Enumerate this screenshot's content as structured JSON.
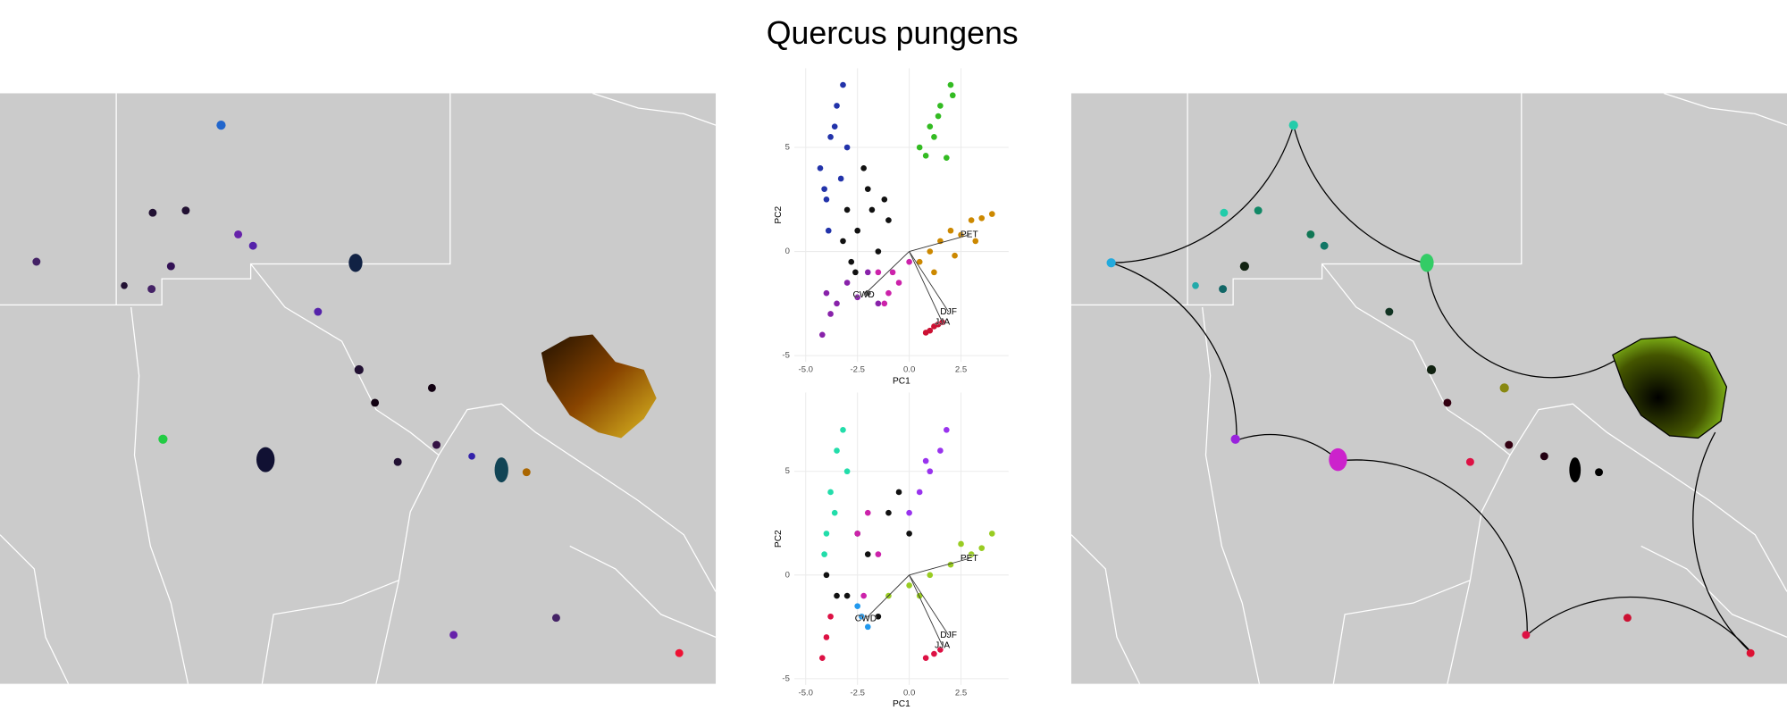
{
  "title": "Quercus pungens",
  "chart_data": [
    {
      "type": "scatter",
      "x_label": "PC1",
      "y_label": "PC2",
      "xlim": [
        -5.55,
        4.8
      ],
      "ylim": [
        -5.3,
        8.8
      ],
      "xticks": [
        {
          "value": -5,
          "label": "-5.0"
        },
        {
          "value": -2.5,
          "label": "-2.5"
        },
        {
          "value": 0,
          "label": "0.0"
        },
        2.5
      ],
      "yticks": [
        -5,
        0,
        5
      ],
      "grid": true,
      "series": [
        {
          "color": "#2233aa",
          "x": [
            -4.3,
            -4.0,
            -3.8,
            -3.5,
            -3.2,
            -3.9,
            -4.1,
            -3.6,
            -3.3,
            -3.0
          ],
          "values": [
            4,
            2.5,
            5.5,
            7,
            8,
            1,
            3,
            6,
            3.5,
            5
          ]
        },
        {
          "color": "#111111",
          "x": [
            -3,
            -2.5,
            -2,
            -1.5,
            -1,
            -2.8,
            -2.2,
            -1.8,
            -3.2,
            -2.6,
            -1.2,
            -2
          ],
          "values": [
            2,
            1,
            3,
            0,
            1.5,
            -0.5,
            4,
            2,
            0.5,
            -1,
            2.5,
            -2
          ]
        },
        {
          "color": "#33bb22",
          "x": [
            0.5,
            1,
            1.5,
            2,
            1.8,
            1.2,
            0.8,
            2.1,
            1.4
          ],
          "values": [
            5,
            6,
            7,
            8,
            4.5,
            5.5,
            4.6,
            7.5,
            6.5
          ]
        },
        {
          "color": "#8822aa",
          "x": [
            -4,
            -3.5,
            -3,
            -2.5,
            -2,
            -1.5,
            -4.2,
            -3.8
          ],
          "values": [
            -2,
            -2.5,
            -1.5,
            -2.2,
            -1,
            -2.5,
            -4,
            -3
          ]
        },
        {
          "color": "#cc8800",
          "x": [
            0.5,
            1,
            1.5,
            2,
            2.5,
            3,
            3.5,
            4,
            1.2,
            2.2,
            3.2
          ],
          "values": [
            -0.5,
            0,
            0.5,
            1,
            0.8,
            1.5,
            1.6,
            1.8,
            -1,
            -0.2,
            0.5
          ]
        },
        {
          "color": "#cc1133",
          "x": [
            0.8,
            1.0,
            1.2,
            1.4,
            1.6
          ],
          "values": [
            -3.9,
            -3.8,
            -3.6,
            -3.5,
            -3.4
          ]
        },
        {
          "color": "#cc22aa",
          "x": [
            -1.5,
            -1,
            -0.5,
            0,
            -1.2,
            -0.8
          ],
          "values": [
            -1,
            -2,
            -1.5,
            -0.5,
            -2.5,
            -1
          ]
        }
      ],
      "vectors": [
        {
          "label": "PET",
          "x": 2.9,
          "y": 0.8
        },
        {
          "label": "CWD",
          "x": -2.2,
          "y": -2.1
        },
        {
          "label": "DJF",
          "x": 1.9,
          "y": -2.9
        },
        {
          "label": "JJA",
          "x": 1.6,
          "y": -3.4
        }
      ]
    },
    {
      "type": "scatter",
      "x_label": "PC1",
      "y_label": "PC2",
      "xlim": [
        -5.55,
        4.8
      ],
      "ylim": [
        -5.3,
        8.8
      ],
      "xticks": [
        {
          "value": -5,
          "label": "-5.0"
        },
        {
          "value": -2.5,
          "label": "-2.5"
        },
        {
          "value": 0,
          "label": "0.0"
        },
        2.5
      ],
      "yticks": [
        -5,
        0,
        5
      ],
      "grid": true,
      "series": [
        {
          "color": "#22ddaa",
          "x": [
            -4,
            -3.8,
            -3.5,
            -3.2,
            -3,
            -3.6,
            -4.1
          ],
          "values": [
            2,
            4,
            6,
            7,
            5,
            3,
            1
          ]
        },
        {
          "color": "#111111",
          "x": [
            -4,
            -3,
            -2,
            -1,
            -0.5,
            0,
            -1.5,
            -2.5,
            -3.5
          ],
          "values": [
            0,
            -1,
            1,
            3,
            4,
            2,
            -2,
            2,
            -1
          ]
        },
        {
          "color": "#9933ee",
          "x": [
            0,
            0.5,
            1,
            1.5,
            1.8,
            0.8
          ],
          "values": [
            3,
            4,
            5,
            6,
            7,
            5.5
          ]
        },
        {
          "color": "#99cc22",
          "x": [
            -1,
            0,
            1,
            2,
            3,
            4,
            2.5,
            0.5,
            3.5
          ],
          "values": [
            -1,
            -0.5,
            0,
            0.5,
            1,
            2,
            1.5,
            -1,
            1.3
          ]
        },
        {
          "color": "#cc22aa",
          "x": [
            -2.5,
            -2,
            -1.5,
            -2.2
          ],
          "values": [
            2,
            3,
            1,
            -1
          ]
        },
        {
          "color": "#dd1144",
          "x": [
            -4.2,
            -4,
            -3.8,
            0.8,
            1.2,
            1.5
          ],
          "values": [
            -4,
            -3,
            -2,
            -4,
            -3.8,
            -3.6
          ]
        },
        {
          "color": "#2299ee",
          "x": [
            -2.5,
            -2.3,
            -2
          ],
          "values": [
            -1.5,
            -2,
            -2.5
          ]
        }
      ],
      "vectors": [
        {
          "label": "PET",
          "x": 2.9,
          "y": 0.8
        },
        {
          "label": "CWD",
          "x": -2.1,
          "y": -2.1
        },
        {
          "label": "DJF",
          "x": 1.9,
          "y": -2.9
        },
        {
          "label": "JJA",
          "x": 1.6,
          "y": -3.4
        }
      ]
    }
  ]
}
